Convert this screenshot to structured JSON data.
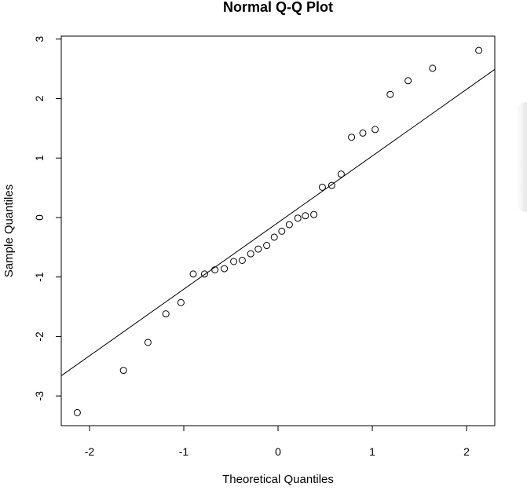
{
  "chart_data": {
    "type": "scatter",
    "title": "Normal Q-Q Plot",
    "xlabel": "Theoretical Quantiles",
    "ylabel": "Sample Quantiles",
    "xlim": [
      -2.3,
      2.3
    ],
    "ylim": [
      -3.5,
      3.05
    ],
    "x_ticks": [
      -2,
      -1,
      0,
      1,
      2
    ],
    "y_ticks": [
      -3,
      -2,
      -1,
      0,
      1,
      2,
      3
    ],
    "x_tick_labels": [
      "-2",
      "-1",
      "0",
      "1",
      "2"
    ],
    "y_tick_labels": [
      "-3",
      "-2",
      "-1",
      "0",
      "1",
      "2",
      "3"
    ],
    "grid": false,
    "marker": "open-circle",
    "points": [
      {
        "x": -2.13,
        "y": -3.28
      },
      {
        "x": -1.64,
        "y": -2.57
      },
      {
        "x": -1.38,
        "y": -2.1
      },
      {
        "x": -1.19,
        "y": -1.62
      },
      {
        "x": -1.03,
        "y": -1.43
      },
      {
        "x": -0.9,
        "y": -0.95
      },
      {
        "x": -0.78,
        "y": -0.95
      },
      {
        "x": -0.67,
        "y": -0.88
      },
      {
        "x": -0.57,
        "y": -0.86
      },
      {
        "x": -0.47,
        "y": -0.74
      },
      {
        "x": -0.38,
        "y": -0.72
      },
      {
        "x": -0.29,
        "y": -0.61
      },
      {
        "x": -0.21,
        "y": -0.53
      },
      {
        "x": -0.12,
        "y": -0.47
      },
      {
        "x": -0.04,
        "y": -0.33
      },
      {
        "x": 0.04,
        "y": -0.23
      },
      {
        "x": 0.12,
        "y": -0.12
      },
      {
        "x": 0.21,
        "y": -0.01
      },
      {
        "x": 0.29,
        "y": 0.03
      },
      {
        "x": 0.38,
        "y": 0.05
      },
      {
        "x": 0.47,
        "y": 0.51
      },
      {
        "x": 0.57,
        "y": 0.54
      },
      {
        "x": 0.67,
        "y": 0.73
      },
      {
        "x": 0.78,
        "y": 1.35
      },
      {
        "x": 0.9,
        "y": 1.42
      },
      {
        "x": 1.03,
        "y": 1.48
      },
      {
        "x": 1.19,
        "y": 2.07
      },
      {
        "x": 1.38,
        "y": 2.3
      },
      {
        "x": 1.64,
        "y": 2.51
      },
      {
        "x": 2.13,
        "y": 2.81
      }
    ],
    "reference_line": {
      "intercept": -0.085,
      "slope": 1.12
    }
  }
}
